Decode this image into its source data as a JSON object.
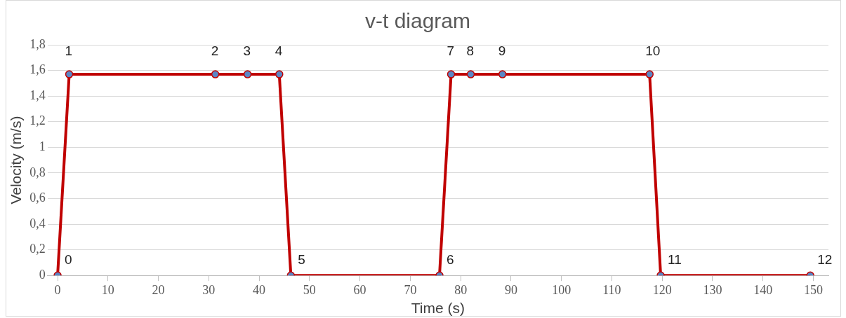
{
  "chart_data": {
    "type": "line",
    "title": "v-t diagram",
    "xlabel": "Time (s)",
    "ylabel": "Velocity (m/s)",
    "x": [
      0,
      2.3,
      31.3,
      37.7,
      44,
      46.3,
      75.8,
      78.1,
      82,
      88.3,
      117.5,
      119.7,
      149.4
    ],
    "series": [
      {
        "color": "#c00000",
        "values": [
          0,
          1.57,
          1.57,
          1.57,
          1.57,
          0,
          0,
          1.57,
          1.57,
          1.57,
          1.57,
          0,
          0
        ]
      }
    ],
    "xlim": [
      -2,
      153
    ],
    "xticks": [
      0,
      10,
      20,
      30,
      40,
      50,
      60,
      70,
      80,
      90,
      100,
      110,
      120,
      130,
      140,
      150
    ],
    "ylim": [
      0,
      1.8
    ],
    "yticks": [
      0,
      {
        "value": 0.2,
        "label": "0,2"
      },
      {
        "value": 0.4,
        "label": "0,4"
      },
      {
        "value": 0.6,
        "label": "0,6"
      },
      {
        "value": 0.8,
        "label": "0,8"
      },
      1,
      {
        "value": 1.2,
        "label": "1,2"
      },
      {
        "value": 1.4,
        "label": "1,4"
      },
      {
        "value": 1.6,
        "label": "1,6"
      },
      {
        "value": 1.8,
        "label": "1,8"
      }
    ],
    "grid": "y",
    "legend": false,
    "marker": "circle",
    "line_style": "solid",
    "annotations": [
      {
        "text": "0",
        "x": 0,
        "y": 0
      },
      {
        "text": "1",
        "x": 2.3,
        "y": 1.57
      },
      {
        "text": "2",
        "x": 31.3,
        "y": 1.57
      },
      {
        "text": "3",
        "x": 37.7,
        "y": 1.57
      },
      {
        "text": "4",
        "x": 44,
        "y": 1.57
      },
      {
        "text": "5",
        "x": 46.3,
        "y": 0
      },
      {
        "text": "6",
        "x": 75.8,
        "y": 0
      },
      {
        "text": "7",
        "x": 78.1,
        "y": 1.57
      },
      {
        "text": "8",
        "x": 82,
        "y": 1.57
      },
      {
        "text": "9",
        "x": 88.3,
        "y": 1.57
      },
      {
        "text": "10",
        "x": 117.5,
        "y": 1.57
      },
      {
        "text": "11",
        "x": 119.7,
        "y": 0
      },
      {
        "text": "12",
        "x": 149.4,
        "y": 0
      }
    ]
  }
}
